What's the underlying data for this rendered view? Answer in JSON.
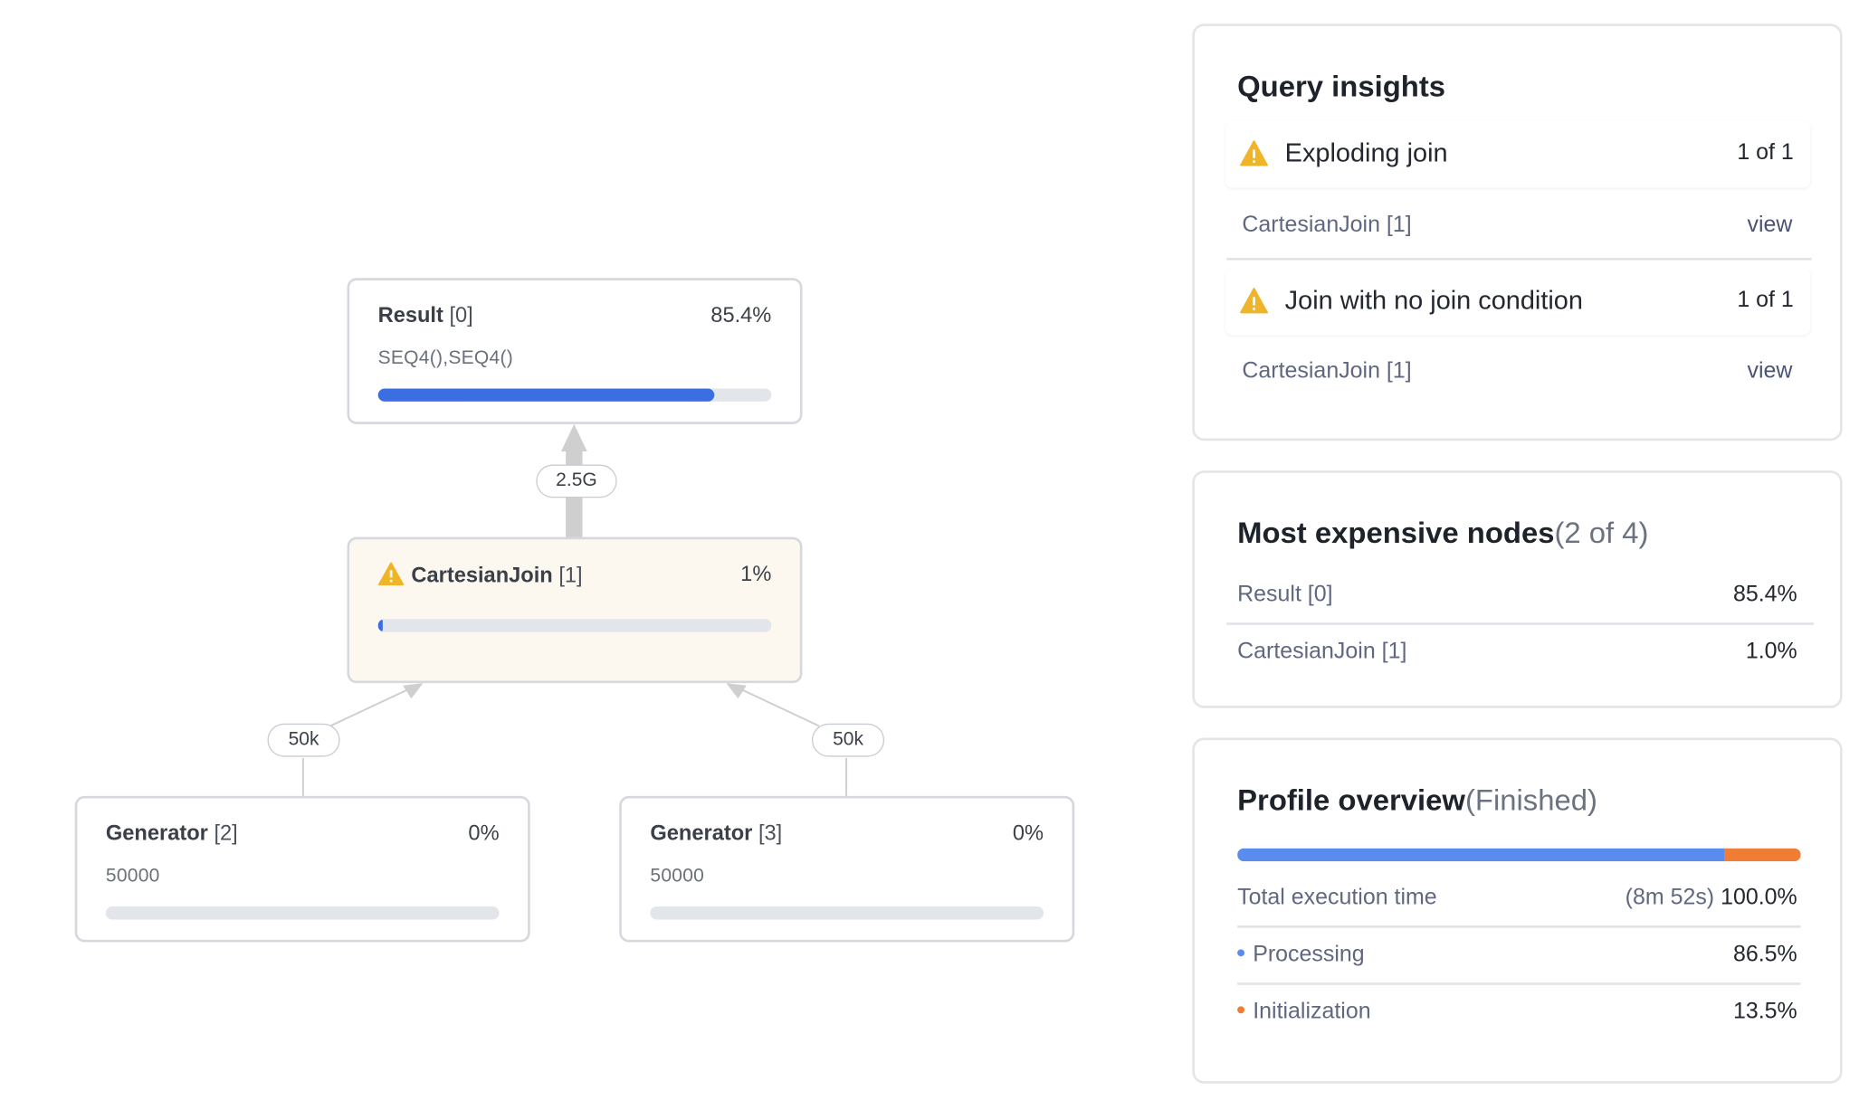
{
  "graph": {
    "nodes": {
      "result": {
        "name": "Result",
        "index": "[0]",
        "percent": "85.4%",
        "subtitle": "SEQ4(),SEQ4()",
        "progress": 0.854
      },
      "cartesian": {
        "name": "CartesianJoin",
        "index": "[1]",
        "percent": "1%",
        "progress": 0.01,
        "warning": true
      },
      "gen2": {
        "name": "Generator",
        "index": "[2]",
        "percent": "0%",
        "subtitle": "50000",
        "progress": 0.0
      },
      "gen3": {
        "name": "Generator",
        "index": "[3]",
        "percent": "0%",
        "subtitle": "50000",
        "progress": 0.0
      }
    },
    "edges": {
      "join_to_result": "2.5G",
      "gen2_to_join": "50k",
      "gen3_to_join": "50k"
    }
  },
  "insights": {
    "title": "Query insights",
    "items": [
      {
        "title": "Exploding join",
        "count": "1 of 1",
        "node": "CartesianJoin [1]",
        "link": "view"
      },
      {
        "title": "Join with no join condition",
        "count": "1 of 1",
        "node": "CartesianJoin [1]",
        "link": "view"
      }
    ]
  },
  "expensive": {
    "title": "Most expensive nodes",
    "count": "(2 of 4)",
    "rows": [
      {
        "name": "Result [0]",
        "value": "85.4%"
      },
      {
        "name": "CartesianJoin [1]",
        "value": "1.0%"
      }
    ]
  },
  "overview": {
    "title": "Profile overview",
    "status": "(Finished)",
    "processing_fraction": 0.865,
    "initialization_fraction": 0.135,
    "total_label": "Total execution time",
    "total_duration": "(8m 52s)",
    "total_value": "100.0%",
    "rows": [
      {
        "label": "Processing",
        "value": "86.5%"
      },
      {
        "label": "Initialization",
        "value": "13.5%"
      }
    ]
  },
  "colors": {
    "accent_blue": "#3b6ee0",
    "processing": "#5a8cf0",
    "initialization": "#ef7d35",
    "warning": "#f0b429"
  }
}
